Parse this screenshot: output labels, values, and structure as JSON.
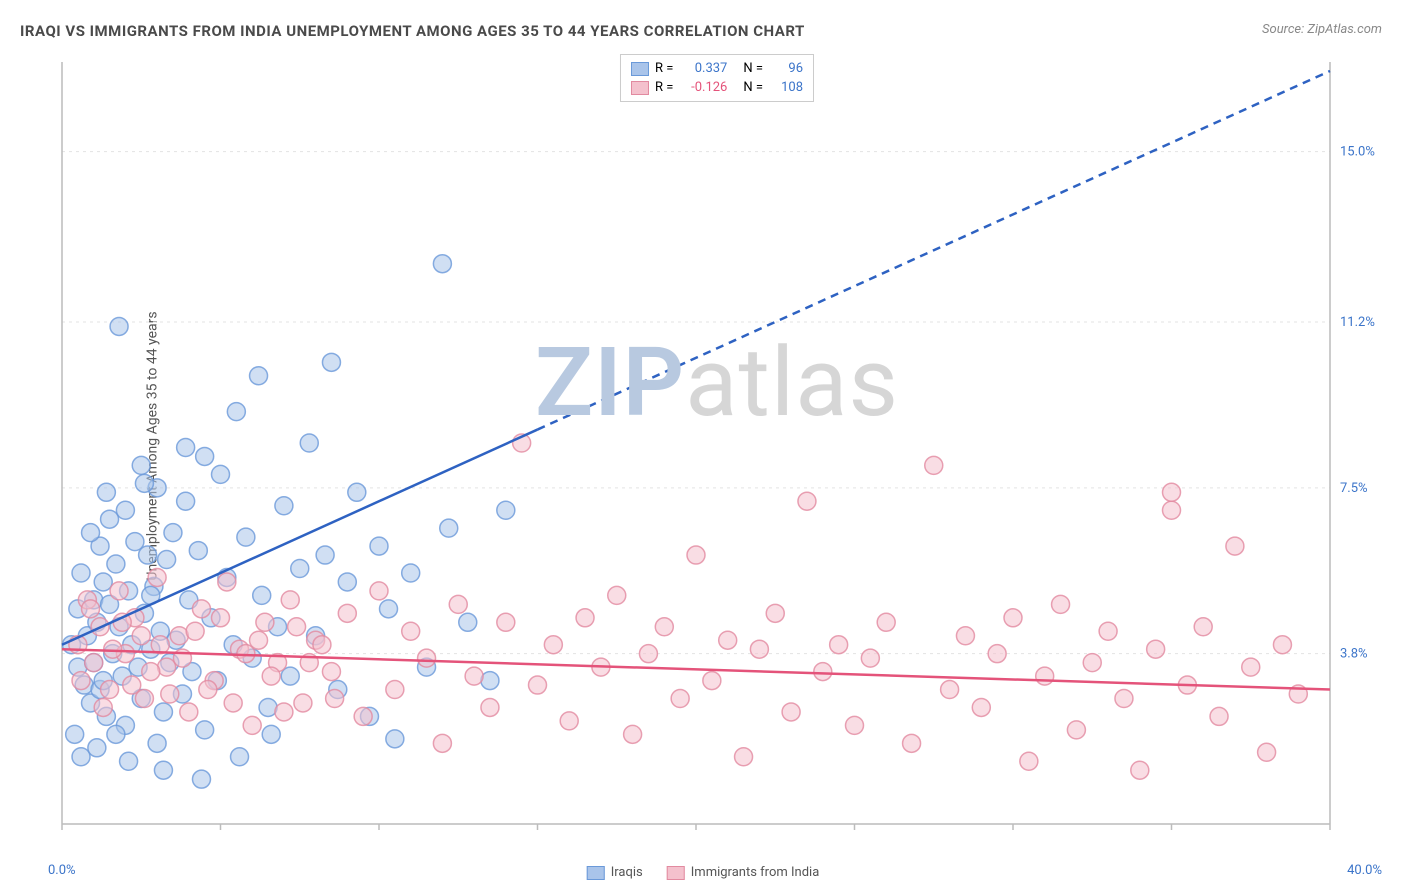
{
  "title": "IRAQI VS IMMIGRANTS FROM INDIA UNEMPLOYMENT AMONG AGES 35 TO 44 YEARS CORRELATION CHART",
  "source": "Source: ZipAtlas.com",
  "ylabel": "Unemployment Among Ages 35 to 44 years",
  "watermark": {
    "text_a": "ZIP",
    "text_b": "atlas",
    "color_a": "#b8c9e0",
    "color_b": "#d6d6d6"
  },
  "chart": {
    "type": "scatter",
    "background_color": "#ffffff",
    "grid_color": "#e3e3e3",
    "axis_color": "#bcbcbc",
    "xlim": [
      0,
      40
    ],
    "ylim": [
      0,
      17
    ],
    "xtick_positions": [
      0,
      5,
      10,
      15,
      20,
      25,
      30,
      35,
      40
    ],
    "ytick_labels": [
      {
        "v": 3.8,
        "label": "3.8%"
      },
      {
        "v": 7.5,
        "label": "7.5%"
      },
      {
        "v": 11.2,
        "label": "11.2%"
      },
      {
        "v": 15.0,
        "label": "15.0%"
      }
    ],
    "ytick_fontsize": 13,
    "ytick_color": "#3b74c9",
    "xlabel_left": {
      "text": "0.0%",
      "color": "#3b74c9"
    },
    "xlabel_right": {
      "text": "40.0%",
      "color": "#3b74c9"
    },
    "marker_radius": 9,
    "marker_opacity": 0.55,
    "marker_stroke_width": 1.5,
    "series": [
      {
        "name": "Iraqis",
        "color_fill": "#a9c4ea",
        "color_stroke": "#6a99d9",
        "R": "0.337",
        "N": "96",
        "trend": {
          "x1": 0,
          "y1": 4.0,
          "x2": 40,
          "y2": 16.8,
          "solid_until_x": 15,
          "stroke": "#2e62c2",
          "width": 2.5,
          "dash": "8 6"
        },
        "points": [
          [
            0.3,
            4.0
          ],
          [
            0.5,
            3.5
          ],
          [
            0.5,
            4.8
          ],
          [
            0.6,
            5.6
          ],
          [
            0.7,
            3.1
          ],
          [
            0.8,
            4.2
          ],
          [
            0.9,
            2.7
          ],
          [
            1.0,
            5.0
          ],
          [
            1.0,
            3.6
          ],
          [
            1.1,
            4.5
          ],
          [
            1.2,
            6.2
          ],
          [
            1.2,
            3.0
          ],
          [
            1.3,
            5.4
          ],
          [
            1.4,
            2.4
          ],
          [
            1.5,
            4.9
          ],
          [
            1.5,
            6.8
          ],
          [
            1.6,
            3.8
          ],
          [
            1.7,
            5.8
          ],
          [
            1.8,
            11.1
          ],
          [
            1.8,
            4.4
          ],
          [
            1.9,
            3.3
          ],
          [
            2.0,
            7.0
          ],
          [
            2.0,
            2.2
          ],
          [
            2.1,
            5.2
          ],
          [
            2.2,
            4.0
          ],
          [
            2.3,
            6.3
          ],
          [
            2.4,
            3.5
          ],
          [
            2.5,
            8.0
          ],
          [
            2.5,
            2.8
          ],
          [
            2.6,
            4.7
          ],
          [
            2.7,
            6.0
          ],
          [
            2.8,
            3.9
          ],
          [
            2.9,
            5.3
          ],
          [
            3.0,
            7.5
          ],
          [
            3.0,
            1.8
          ],
          [
            3.1,
            4.3
          ],
          [
            3.2,
            2.5
          ],
          [
            3.3,
            5.9
          ],
          [
            3.4,
            3.6
          ],
          [
            3.5,
            6.5
          ],
          [
            3.6,
            4.1
          ],
          [
            3.8,
            2.9
          ],
          [
            3.9,
            7.2
          ],
          [
            4.0,
            5.0
          ],
          [
            4.1,
            3.4
          ],
          [
            4.3,
            6.1
          ],
          [
            4.5,
            8.2
          ],
          [
            4.5,
            2.1
          ],
          [
            4.7,
            4.6
          ],
          [
            4.9,
            3.2
          ],
          [
            5.0,
            7.8
          ],
          [
            5.2,
            5.5
          ],
          [
            5.4,
            4.0
          ],
          [
            5.6,
            1.5
          ],
          [
            5.8,
            6.4
          ],
          [
            6.0,
            3.7
          ],
          [
            6.2,
            10.0
          ],
          [
            6.3,
            5.1
          ],
          [
            6.5,
            2.6
          ],
          [
            6.8,
            4.4
          ],
          [
            7.0,
            7.1
          ],
          [
            7.2,
            3.3
          ],
          [
            7.5,
            5.7
          ],
          [
            7.8,
            8.5
          ],
          [
            8.0,
            4.2
          ],
          [
            8.3,
            6.0
          ],
          [
            8.7,
            3.0
          ],
          [
            9.0,
            5.4
          ],
          [
            9.3,
            7.4
          ],
          [
            9.7,
            2.4
          ],
          [
            10.0,
            6.2
          ],
          [
            10.3,
            4.8
          ],
          [
            10.5,
            1.9
          ],
          [
            11.0,
            5.6
          ],
          [
            11.5,
            3.5
          ],
          [
            12.0,
            12.5
          ],
          [
            12.2,
            6.6
          ],
          [
            12.8,
            4.5
          ],
          [
            13.5,
            3.2
          ],
          [
            14.0,
            7.0
          ],
          [
            0.4,
            2.0
          ],
          [
            0.6,
            1.5
          ],
          [
            0.9,
            6.5
          ],
          [
            1.1,
            1.7
          ],
          [
            1.4,
            7.4
          ],
          [
            1.7,
            2.0
          ],
          [
            2.1,
            1.4
          ],
          [
            2.6,
            7.6
          ],
          [
            3.2,
            1.2
          ],
          [
            3.9,
            8.4
          ],
          [
            4.4,
            1.0
          ],
          [
            5.5,
            9.2
          ],
          [
            8.5,
            10.3
          ],
          [
            6.6,
            2.0
          ],
          [
            1.3,
            3.2
          ],
          [
            2.8,
            5.1
          ]
        ]
      },
      {
        "name": "Immigrants from India",
        "color_fill": "#f4c1cd",
        "color_stroke": "#e28aa0",
        "R": "-0.126",
        "N": "108",
        "trend": {
          "x1": 0,
          "y1": 3.9,
          "x2": 40,
          "y2": 3.0,
          "solid_until_x": 40,
          "stroke": "#e4537a",
          "width": 2.5,
          "dash": ""
        },
        "points": [
          [
            0.5,
            4.0
          ],
          [
            0.8,
            5.0
          ],
          [
            1.0,
            3.6
          ],
          [
            1.2,
            4.4
          ],
          [
            1.5,
            3.0
          ],
          [
            1.8,
            5.2
          ],
          [
            2.0,
            3.8
          ],
          [
            2.3,
            4.6
          ],
          [
            2.6,
            2.8
          ],
          [
            3.0,
            5.5
          ],
          [
            3.3,
            3.5
          ],
          [
            3.7,
            4.2
          ],
          [
            4.0,
            2.5
          ],
          [
            4.4,
            4.8
          ],
          [
            4.8,
            3.2
          ],
          [
            5.2,
            5.4
          ],
          [
            5.6,
            3.9
          ],
          [
            6.0,
            2.2
          ],
          [
            6.4,
            4.5
          ],
          [
            6.8,
            3.6
          ],
          [
            7.2,
            5.0
          ],
          [
            7.6,
            2.7
          ],
          [
            8.0,
            4.1
          ],
          [
            8.5,
            3.4
          ],
          [
            9.0,
            4.7
          ],
          [
            9.5,
            2.4
          ],
          [
            10.0,
            5.2
          ],
          [
            10.5,
            3.0
          ],
          [
            11.0,
            4.3
          ],
          [
            11.5,
            3.7
          ],
          [
            12.0,
            1.8
          ],
          [
            12.5,
            4.9
          ],
          [
            13.0,
            3.3
          ],
          [
            13.5,
            2.6
          ],
          [
            14.0,
            4.5
          ],
          [
            14.5,
            8.5
          ],
          [
            15.0,
            3.1
          ],
          [
            15.5,
            4.0
          ],
          [
            16.0,
            2.3
          ],
          [
            16.5,
            4.6
          ],
          [
            17.0,
            3.5
          ],
          [
            17.5,
            5.1
          ],
          [
            18.0,
            2.0
          ],
          [
            18.5,
            3.8
          ],
          [
            19.0,
            4.4
          ],
          [
            19.5,
            2.8
          ],
          [
            20.0,
            6.0
          ],
          [
            20.5,
            3.2
          ],
          [
            21.0,
            4.1
          ],
          [
            21.5,
            1.5
          ],
          [
            22.0,
            3.9
          ],
          [
            22.5,
            4.7
          ],
          [
            23.0,
            2.5
          ],
          [
            23.5,
            7.2
          ],
          [
            24.0,
            3.4
          ],
          [
            24.5,
            4.0
          ],
          [
            25.0,
            2.2
          ],
          [
            25.5,
            3.7
          ],
          [
            26.0,
            4.5
          ],
          [
            26.8,
            1.8
          ],
          [
            27.5,
            8.0
          ],
          [
            28.0,
            3.0
          ],
          [
            28.5,
            4.2
          ],
          [
            29.0,
            2.6
          ],
          [
            29.5,
            3.8
          ],
          [
            30.0,
            4.6
          ],
          [
            30.5,
            1.4
          ],
          [
            31.0,
            3.3
          ],
          [
            31.5,
            4.9
          ],
          [
            32.0,
            2.1
          ],
          [
            32.5,
            3.6
          ],
          [
            33.0,
            4.3
          ],
          [
            33.5,
            2.8
          ],
          [
            34.0,
            1.2
          ],
          [
            34.5,
            3.9
          ],
          [
            35.0,
            7.0
          ],
          [
            35.0,
            7.4
          ],
          [
            35.5,
            3.1
          ],
          [
            36.0,
            4.4
          ],
          [
            36.5,
            2.4
          ],
          [
            37.0,
            6.2
          ],
          [
            37.5,
            3.5
          ],
          [
            38.0,
            1.6
          ],
          [
            38.5,
            4.0
          ],
          [
            39.0,
            2.9
          ],
          [
            0.6,
            3.2
          ],
          [
            0.9,
            4.8
          ],
          [
            1.3,
            2.6
          ],
          [
            1.6,
            3.9
          ],
          [
            1.9,
            4.5
          ],
          [
            2.2,
            3.1
          ],
          [
            2.5,
            4.2
          ],
          [
            2.8,
            3.4
          ],
          [
            3.1,
            4.0
          ],
          [
            3.4,
            2.9
          ],
          [
            3.8,
            3.7
          ],
          [
            4.2,
            4.3
          ],
          [
            4.6,
            3.0
          ],
          [
            5.0,
            4.6
          ],
          [
            5.4,
            2.7
          ],
          [
            5.8,
            3.8
          ],
          [
            6.2,
            4.1
          ],
          [
            6.6,
            3.3
          ],
          [
            7.0,
            2.5
          ],
          [
            7.4,
            4.4
          ],
          [
            7.8,
            3.6
          ],
          [
            8.2,
            4.0
          ],
          [
            8.6,
            2.8
          ]
        ]
      }
    ]
  },
  "legend_bottom": [
    {
      "label": "Iraqis",
      "fill": "#a9c4ea",
      "stroke": "#6a99d9"
    },
    {
      "label": "Immigrants from India",
      "fill": "#f4c1cd",
      "stroke": "#e28aa0"
    }
  ]
}
